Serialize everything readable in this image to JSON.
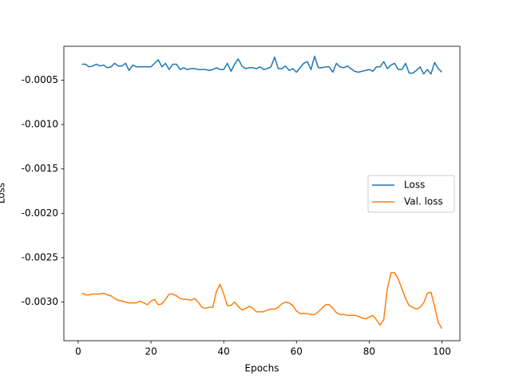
{
  "chart_data": {
    "type": "line",
    "xlabel": "Epochs",
    "ylabel": "Loss",
    "x": [
      1,
      2,
      3,
      4,
      5,
      6,
      7,
      8,
      9,
      10,
      11,
      12,
      13,
      14,
      15,
      16,
      17,
      18,
      19,
      20,
      21,
      22,
      23,
      24,
      25,
      26,
      27,
      28,
      29,
      30,
      31,
      32,
      33,
      34,
      35,
      36,
      37,
      38,
      39,
      40,
      41,
      42,
      43,
      44,
      45,
      46,
      47,
      48,
      49,
      50,
      51,
      52,
      53,
      54,
      55,
      56,
      57,
      58,
      59,
      60,
      61,
      62,
      63,
      64,
      65,
      66,
      67,
      68,
      69,
      70,
      71,
      72,
      73,
      74,
      75,
      76,
      77,
      78,
      79,
      80,
      81,
      82,
      83,
      84,
      85,
      86,
      87,
      88,
      89,
      90,
      91,
      92,
      93,
      94,
      95,
      96,
      97,
      98,
      99,
      100
    ],
    "series": [
      {
        "name": "Loss",
        "color": "#1f77b4",
        "values": [
          -0.00032,
          -0.00032,
          -0.00035,
          -0.00034,
          -0.00032,
          -0.00034,
          -0.00033,
          -0.00036,
          -0.00035,
          -0.00031,
          -0.00034,
          -0.00034,
          -0.00031,
          -0.00039,
          -0.00033,
          -0.00035,
          -0.00035,
          -0.00035,
          -0.00035,
          -0.00035,
          -0.00031,
          -0.00027,
          -0.00035,
          -0.00031,
          -0.00038,
          -0.00032,
          -0.00032,
          -0.00038,
          -0.00036,
          -0.00038,
          -0.00037,
          -0.00037,
          -0.00038,
          -0.00038,
          -0.00038,
          -0.00039,
          -0.00038,
          -0.00036,
          -0.00038,
          -0.00038,
          -0.00031,
          -0.0004,
          -0.00032,
          -0.00026,
          -0.00034,
          -0.00037,
          -0.00036,
          -0.00036,
          -0.00037,
          -0.00035,
          -0.00038,
          -0.00037,
          -0.00035,
          -0.00024,
          -0.00037,
          -0.00037,
          -0.00034,
          -0.00039,
          -0.00037,
          -0.00041,
          -0.00036,
          -0.00031,
          -0.00029,
          -0.00038,
          -0.00023,
          -0.00036,
          -0.00036,
          -0.00035,
          -0.00035,
          -0.00041,
          -0.00031,
          -0.00035,
          -0.00036,
          -0.00034,
          -0.00037,
          -0.0004,
          -0.00041,
          -0.0004,
          -0.00039,
          -0.00038,
          -0.0004,
          -0.00035,
          -0.00035,
          -0.00029,
          -0.00037,
          -0.00033,
          -0.00031,
          -0.00038,
          -0.00038,
          -0.00031,
          -0.00042,
          -0.00042,
          -0.00039,
          -0.00035,
          -0.00043,
          -0.00038,
          -0.00043,
          -0.0003,
          -0.00037,
          -0.00041
        ]
      },
      {
        "name": "Val. loss",
        "color": "#ff7f0e",
        "values": [
          -0.0029,
          -0.00292,
          -0.00292,
          -0.00291,
          -0.00291,
          -0.00291,
          -0.0029,
          -0.00292,
          -0.00293,
          -0.00296,
          -0.00298,
          -0.00299,
          -0.003,
          -0.00301,
          -0.00301,
          -0.00301,
          -0.00299,
          -0.00301,
          -0.00303,
          -0.00299,
          -0.00297,
          -0.00303,
          -0.00302,
          -0.00297,
          -0.00291,
          -0.00291,
          -0.00293,
          -0.00296,
          -0.00297,
          -0.00297,
          -0.00298,
          -0.00296,
          -0.003,
          -0.00306,
          -0.00307,
          -0.00306,
          -0.00306,
          -0.00288,
          -0.0028,
          -0.00291,
          -0.00304,
          -0.00304,
          -0.003,
          -0.00305,
          -0.00309,
          -0.00307,
          -0.00305,
          -0.00307,
          -0.00311,
          -0.00311,
          -0.00311,
          -0.00309,
          -0.00308,
          -0.00308,
          -0.00306,
          -0.00302,
          -0.003,
          -0.00301,
          -0.00304,
          -0.0031,
          -0.00313,
          -0.00313,
          -0.00313,
          -0.00314,
          -0.00314,
          -0.00311,
          -0.00307,
          -0.00303,
          -0.00303,
          -0.00307,
          -0.00312,
          -0.00314,
          -0.00314,
          -0.00315,
          -0.00315,
          -0.00315,
          -0.00316,
          -0.00318,
          -0.00319,
          -0.00317,
          -0.00315,
          -0.0032,
          -0.00326,
          -0.0032,
          -0.00285,
          -0.00267,
          -0.00267,
          -0.00274,
          -0.00285,
          -0.00296,
          -0.00304,
          -0.00306,
          -0.00308,
          -0.00306,
          -0.00301,
          -0.0029,
          -0.00289,
          -0.00305,
          -0.00323,
          -0.0033
        ]
      }
    ],
    "xlim": [
      -3.95,
      104.95
    ],
    "xticks": [
      0,
      20,
      40,
      60,
      80,
      100
    ],
    "ylim": [
      -0.003436,
      -0.000118
    ],
    "yticks": [
      -0.0005,
      {
        "value": -0.001,
        "label": "-0.0010"
      },
      -0.0015,
      {
        "value": -0.002,
        "label": "-0.0020"
      },
      -0.0025,
      {
        "value": -0.003,
        "label": "-0.0030"
      }
    ],
    "grid": false,
    "legend": "center right"
  }
}
